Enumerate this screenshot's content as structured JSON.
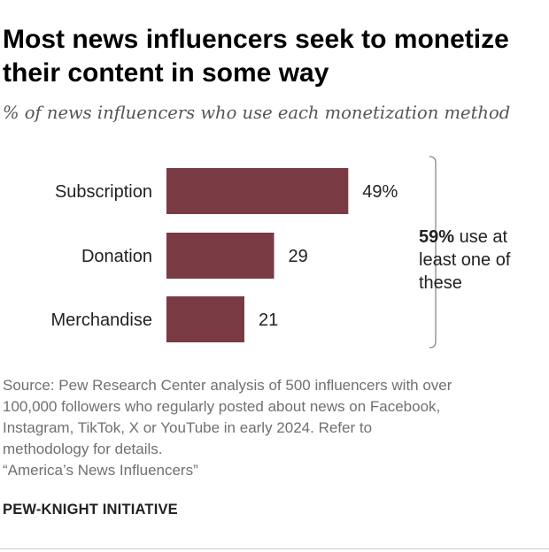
{
  "title": "Most news influencers seek to monetize their content in some way",
  "subtitle": "% of news influencers who use each monetization method",
  "chart_data": {
    "type": "bar",
    "orientation": "horizontal",
    "categories": [
      "Subscription",
      "Donation",
      "Merchandise"
    ],
    "values": [
      49,
      29,
      21
    ],
    "value_labels": [
      "49%",
      "29",
      "21"
    ],
    "xlim": [
      0,
      100
    ],
    "grid": false,
    "bar_color": "#7a3a44"
  },
  "annotation": {
    "value": "59%",
    "text": "use at least one of these"
  },
  "source_lines": [
    "Source: Pew Research Center analysis of 500 influencers with over",
    "100,000 followers who regularly posted about news on Facebook,",
    "Instagram, TikTok, X or YouTube in early 2024. Refer to",
    "methodology for details.",
    "“America’s News Influencers”"
  ],
  "brand": "PEW-KNIGHT INITIATIVE"
}
